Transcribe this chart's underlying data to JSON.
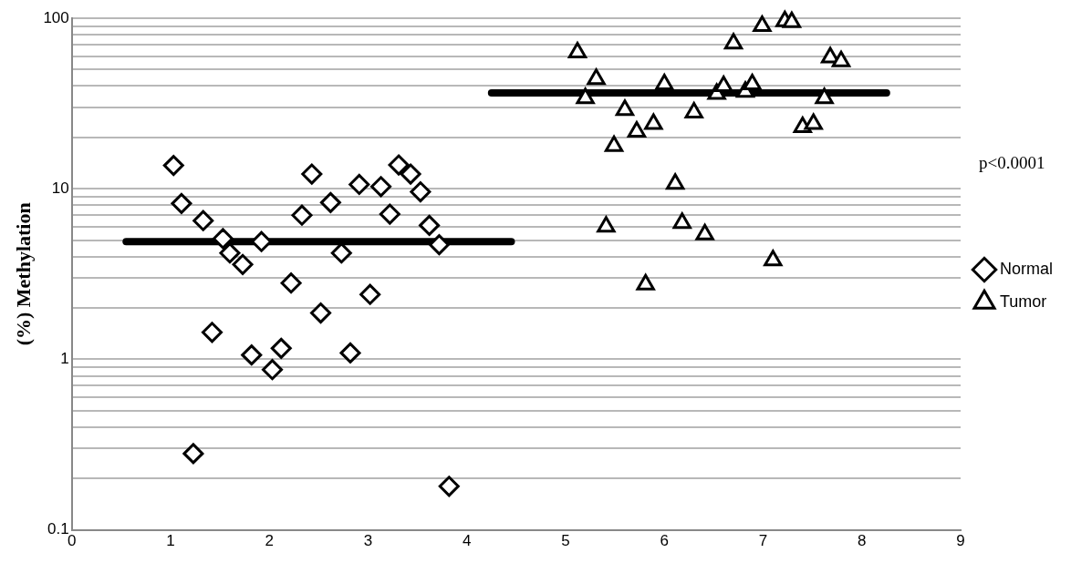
{
  "chart_data": {
    "type": "scatter",
    "ylabel": "(%) Methylation",
    "annotations": [
      "p<0.0001"
    ],
    "xlim": [
      0,
      9
    ],
    "xticks": [
      0,
      1,
      2,
      3,
      4,
      5,
      6,
      7,
      8,
      9
    ],
    "log": "y",
    "ylim": [
      0.1,
      100
    ],
    "yticks": [
      0.1,
      {
        "value": 0.2,
        "label": null
      },
      {
        "value": 0.3,
        "label": null
      },
      {
        "value": 0.4,
        "label": null
      },
      {
        "value": 0.5,
        "label": null
      },
      {
        "value": 0.6,
        "label": null
      },
      {
        "value": 0.7,
        "label": null
      },
      {
        "value": 0.8,
        "label": null
      },
      {
        "value": 0.9,
        "label": null
      },
      1,
      {
        "value": 2,
        "label": null
      },
      {
        "value": 3,
        "label": null
      },
      {
        "value": 4,
        "label": null
      },
      {
        "value": 5,
        "label": null
      },
      {
        "value": 6,
        "label": null
      },
      {
        "value": 7,
        "label": null
      },
      {
        "value": 8,
        "label": null
      },
      {
        "value": 9,
        "label": null
      },
      10,
      {
        "value": 20,
        "label": null
      },
      {
        "value": 30,
        "label": null
      },
      {
        "value": 40,
        "label": null
      },
      {
        "value": 50,
        "label": null
      },
      {
        "value": 60,
        "label": null
      },
      {
        "value": 70,
        "label": null
      },
      {
        "value": 80,
        "label": null
      },
      {
        "value": 90,
        "label": null
      },
      100
    ],
    "grid": "y",
    "legend": "right",
    "series": [
      {
        "name": "Normal",
        "color": "#000000",
        "marker": "diamond",
        "x": [
          1.03,
          1.11,
          1.33,
          1.53,
          1.6,
          1.73,
          1.92,
          1.42,
          1.82,
          2.12,
          2.03,
          1.23,
          2.22,
          2.33,
          2.43,
          2.52,
          2.62,
          2.73,
          2.82,
          2.91,
          3.02,
          3.13,
          3.22,
          3.31,
          3.43,
          3.53,
          3.62,
          3.72,
          3.82
        ],
        "values": [
          13.7,
          8.2,
          6.5,
          5.1,
          4.2,
          3.6,
          4.9,
          1.44,
          1.06,
          1.16,
          0.87,
          0.28,
          2.8,
          7.0,
          12.2,
          1.87,
          8.3,
          4.2,
          1.09,
          10.6,
          2.4,
          10.3,
          7.1,
          13.8,
          12.2,
          9.6,
          6.1,
          4.7,
          0.18
        ]
      },
      {
        "name": "Tumor",
        "color": "#000000",
        "marker": "triangle",
        "x": [
          5.12,
          5.31,
          5.2,
          5.6,
          5.72,
          5.49,
          5.89,
          6.0,
          6.3,
          6.53,
          6.6,
          6.7,
          6.82,
          6.89,
          6.99,
          7.22,
          7.29,
          7.68,
          7.79,
          7.62,
          7.4,
          7.51,
          6.11,
          5.41,
          6.18,
          6.41,
          7.1,
          5.81
        ],
        "values": [
          63,
          44,
          34,
          29,
          21.6,
          17.8,
          24,
          41,
          28,
          36,
          40,
          71,
          37,
          41,
          90,
          96,
          95,
          59,
          56,
          34,
          23,
          24,
          10.7,
          6.0,
          6.3,
          5.4,
          3.8,
          2.75
        ]
      },
      {
        "type": "line",
        "color": "#000000",
        "marker": "none",
        "x": [
          0.55,
          4.45
        ],
        "values": [
          4.9,
          4.9
        ]
      },
      {
        "type": "line",
        "color": "#000000",
        "marker": "none",
        "x": [
          4.25,
          8.25
        ],
        "values": [
          36.5,
          36.5
        ]
      }
    ]
  }
}
